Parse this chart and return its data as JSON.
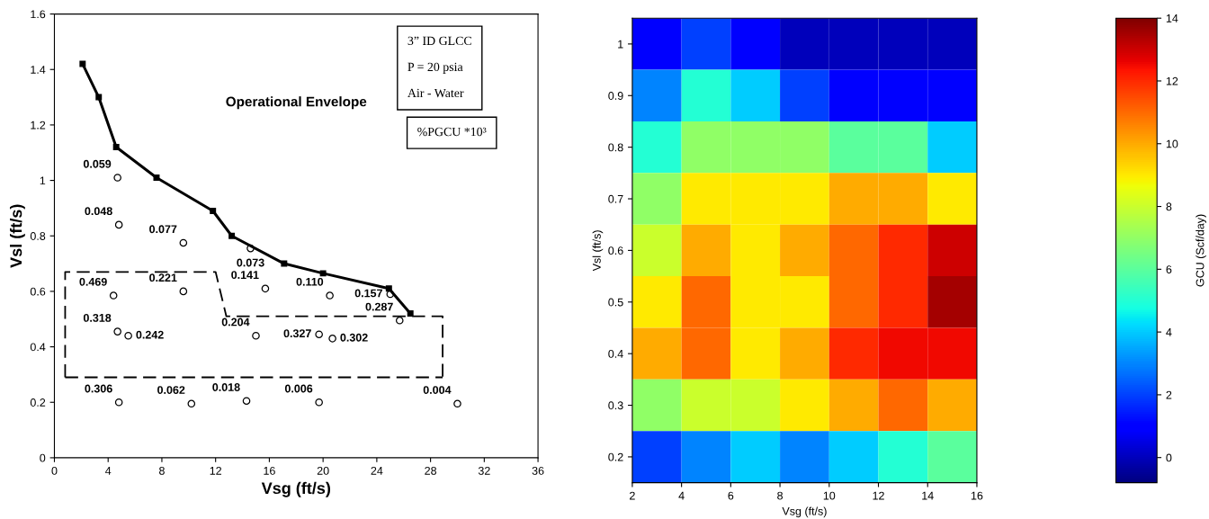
{
  "chart_data": [
    {
      "type": "scatter",
      "xlabel": "Vsg (ft/s)",
      "ylabel": "Vsl (ft/s)",
      "xlim": [
        0,
        36
      ],
      "xticks": [
        0,
        4,
        8,
        12,
        16,
        20,
        24,
        28,
        32,
        36
      ],
      "ylim": [
        0,
        1.6
      ],
      "yticks": [
        0,
        0.2,
        0.4,
        0.6,
        0.8,
        1,
        1.2,
        1.4,
        1.6
      ],
      "grid": false,
      "series": [
        {
          "type": "scatter",
          "color": "#000000",
          "marker": "circle",
          "x": [
            4.7,
            4.8,
            9.6,
            14.6,
            15.7,
            20.5,
            25.0,
            4.4,
            9.6,
            4.7,
            5.5,
            15.0,
            19.7,
            20.7,
            25.7,
            4.8,
            10.2,
            14.3,
            19.7,
            30.0
          ],
          "values": [
            1.01,
            0.84,
            0.775,
            0.755,
            0.61,
            0.585,
            0.59,
            0.585,
            0.6,
            0.455,
            0.44,
            0.44,
            0.445,
            0.43,
            0.495,
            0.2,
            0.195,
            0.205,
            0.2,
            0.195
          ]
        },
        {
          "type": "line",
          "color": "#000000",
          "marker": "square",
          "line_style": "solid",
          "x": [
            2.1,
            3.3,
            4.6,
            7.6,
            11.8,
            13.2,
            17.1,
            20.0,
            24.9,
            26.5
          ],
          "values": [
            1.42,
            1.3,
            1.12,
            1.01,
            0.89,
            0.8,
            0.7,
            0.665,
            0.61,
            0.52
          ]
        },
        {
          "type": "line",
          "color": "#000000",
          "marker": "none",
          "line_style": "dashed",
          "x": [
            0.8,
            0.8,
            12.0,
            12.8,
            28.9,
            28.9
          ],
          "values": [
            0.29,
            0.67,
            0.67,
            0.51,
            0.51,
            0.29
          ]
        },
        {
          "type": "line",
          "color": "#000000",
          "marker": "none",
          "line_style": "dashed",
          "x": [
            0.8,
            28.9
          ],
          "values": [
            0.29,
            0.29
          ]
        }
      ],
      "annotations": [
        {
          "text": "0.059",
          "x": 4.7,
          "y": 1.01
        },
        {
          "text": "0.048",
          "x": 4.8,
          "y": 0.84
        },
        {
          "text": "0.077",
          "x": 9.6,
          "y": 0.775
        },
        {
          "text": "0.073",
          "x": 14.6,
          "y": 0.755
        },
        {
          "text": "0.141",
          "x": 15.7,
          "y": 0.61
        },
        {
          "text": "0.110",
          "x": 20.5,
          "y": 0.585
        },
        {
          "text": "0.157",
          "x": 25.0,
          "y": 0.59
        },
        {
          "text": "0.469",
          "x": 4.4,
          "y": 0.585
        },
        {
          "text": "0.221",
          "x": 9.6,
          "y": 0.6
        },
        {
          "text": "0.318",
          "x": 4.7,
          "y": 0.455
        },
        {
          "text": "0.242",
          "x": 5.5,
          "y": 0.44
        },
        {
          "text": "0.204",
          "x": 15.0,
          "y": 0.44
        },
        {
          "text": "0.327",
          "x": 19.7,
          "y": 0.445
        },
        {
          "text": "0.302",
          "x": 20.7,
          "y": 0.43
        },
        {
          "text": "0.287",
          "x": 25.7,
          "y": 0.495
        },
        {
          "text": "0.306",
          "x": 4.8,
          "y": 0.2
        },
        {
          "text": "0.062",
          "x": 10.2,
          "y": 0.195
        },
        {
          "text": "0.018",
          "x": 14.3,
          "y": 0.205
        },
        {
          "text": "0.006",
          "x": 19.7,
          "y": 0.2
        },
        {
          "text": "0.004",
          "x": 30.0,
          "y": 0.195
        },
        "Operational Envelope",
        "3” ID GLCC\n\nP = 20 psia\n\nAir - Water",
        "%PGCU *10³"
      ]
    },
    {
      "type": "heatmap",
      "xlabel": "Vsg (ft/s)",
      "ylabel": "Vsl (ft/s)",
      "clabel": "GCU (Scf/day)",
      "x": [
        3,
        5,
        7,
        9,
        11,
        13,
        15
      ],
      "y_categories": [
        "1",
        "0.9",
        "0.8",
        "0.7",
        "0.6",
        "0.5",
        "0.4",
        "0.3",
        "0.2"
      ],
      "xlim": [
        2,
        16
      ],
      "xticks": [
        2,
        4,
        6,
        8,
        10,
        12,
        14,
        16
      ],
      "clim": [
        -0.8,
        14
      ],
      "cticks": [
        0,
        2,
        4,
        6,
        8,
        10,
        12,
        14
      ],
      "cells": [
        [
          1,
          2,
          1,
          0,
          0,
          0,
          0
        ],
        [
          3,
          5,
          4,
          2,
          1,
          1,
          1
        ],
        [
          5,
          7,
          7,
          7,
          6,
          6,
          4
        ],
        [
          7,
          9,
          9,
          9,
          10,
          10,
          9
        ],
        [
          8,
          10,
          9,
          10,
          11,
          12,
          13
        ],
        [
          9,
          11,
          9,
          9,
          11,
          12,
          13.5
        ],
        [
          10,
          11,
          9,
          10,
          12,
          12.5,
          12.5
        ],
        [
          7,
          8,
          8,
          9,
          10,
          11,
          10
        ],
        [
          2,
          3,
          4,
          3,
          4,
          5,
          6
        ]
      ]
    }
  ]
}
